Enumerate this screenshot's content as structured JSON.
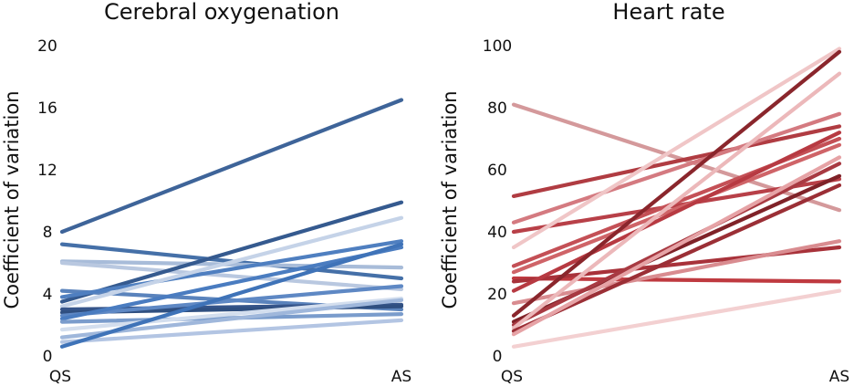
{
  "chart_data": [
    {
      "type": "line",
      "title": "Cerebral oxygenation",
      "ylabel": "Coefficient of variation",
      "xlabel": "",
      "categories": [
        "QS",
        "AS"
      ],
      "ylim": [
        0,
        20
      ],
      "yticks": [
        0,
        4,
        8,
        12,
        16,
        20
      ],
      "grid": false,
      "series": [
        {
          "values": [
            8.0,
            16.5
          ],
          "color": "#3e6499"
        },
        {
          "values": [
            7.2,
            5.0
          ],
          "color": "#4570a8"
        },
        {
          "values": [
            6.1,
            5.7
          ],
          "color": "#a8bcd9"
        },
        {
          "values": [
            6.0,
            4.3
          ],
          "color": "#b9c8e0"
        },
        {
          "values": [
            3.5,
            9.9
          ],
          "color": "#355a8f"
        },
        {
          "values": [
            4.2,
            3.0
          ],
          "color": "#5a83bc"
        },
        {
          "values": [
            3.8,
            7.4
          ],
          "color": "#4f7fc0"
        },
        {
          "values": [
            3.2,
            8.9
          ],
          "color": "#c5d3e8"
        },
        {
          "values": [
            3.0,
            3.3
          ],
          "color": "#36558a"
        },
        {
          "values": [
            2.8,
            3.2
          ],
          "color": "#2f4f80"
        },
        {
          "values": [
            2.6,
            4.5
          ],
          "color": "#5e88c4"
        },
        {
          "values": [
            2.4,
            7.0
          ],
          "color": "#4a7cc0"
        },
        {
          "values": [
            2.2,
            2.7
          ],
          "color": "#7a9ccc"
        },
        {
          "values": [
            1.7,
            3.7
          ],
          "color": "#d3deee"
        },
        {
          "values": [
            1.2,
            3.6
          ],
          "color": "#9fb7db"
        },
        {
          "values": [
            0.9,
            2.3
          ],
          "color": "#b3c5e3"
        },
        {
          "values": [
            0.6,
            7.2
          ],
          "color": "#3f73b8"
        }
      ]
    },
    {
      "type": "line",
      "title": "Heart rate",
      "ylabel": "Coefficient of variation",
      "xlabel": "",
      "categories": [
        "QS",
        "AS"
      ],
      "ylim": [
        0,
        100
      ],
      "yticks": [
        0,
        20,
        40,
        60,
        80,
        100
      ],
      "grid": false,
      "series": [
        {
          "values": [
            81,
            47
          ],
          "color": "#d4999b"
        },
        {
          "values": [
            51.5,
            74
          ],
          "color": "#b03c42"
        },
        {
          "values": [
            43,
            78
          ],
          "color": "#d47a80"
        },
        {
          "values": [
            40,
            57
          ],
          "color": "#b84048"
        },
        {
          "values": [
            35,
            99
          ],
          "color": "#f0c6c7"
        },
        {
          "values": [
            29,
            70
          ],
          "color": "#c45056"
        },
        {
          "values": [
            27,
            68
          ],
          "color": "#cf6468"
        },
        {
          "values": [
            25,
            24
          ],
          "color": "#bf3a40"
        },
        {
          "values": [
            24,
            35
          ],
          "color": "#a8323a"
        },
        {
          "values": [
            21,
            72
          ],
          "color": "#b73a42"
        },
        {
          "values": [
            17,
            37
          ],
          "color": "#d98c90"
        },
        {
          "values": [
            13,
            98
          ],
          "color": "#8a262c"
        },
        {
          "values": [
            11,
            58
          ],
          "color": "#7f2228"
        },
        {
          "values": [
            10,
            62
          ],
          "color": "#a83a42"
        },
        {
          "values": [
            9,
            91
          ],
          "color": "#ecb8ba"
        },
        {
          "values": [
            8,
            55
          ],
          "color": "#9b2f36"
        },
        {
          "values": [
            7,
            64
          ],
          "color": "#e6a3a6"
        },
        {
          "values": [
            3,
            21
          ],
          "color": "#f3d0d1"
        }
      ]
    }
  ]
}
